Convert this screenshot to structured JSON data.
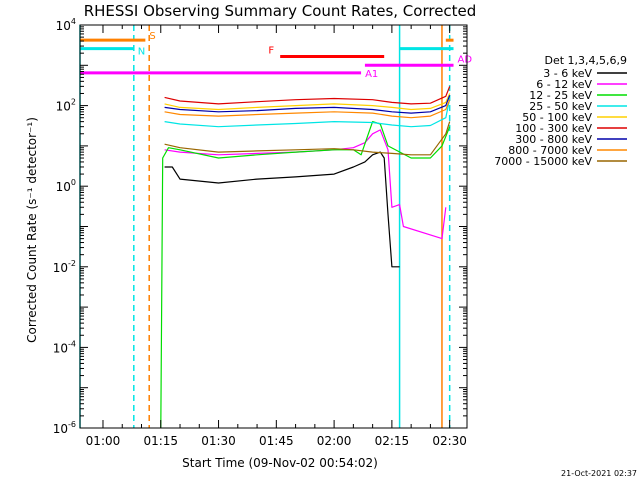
{
  "chart_data": {
    "type": "line",
    "title": "RHESSI Observing Summary Count Rates, Corrected",
    "xlabel": "Start Time (09-Nov-02 00:54:02)",
    "ylabel": "Corrected Count Rate (s⁻¹ detector⁻¹)",
    "y_scale": "log",
    "xlim": [
      "00:54:02",
      "02:34:30"
    ],
    "ylim": [
      1e-06,
      10000.0
    ],
    "x_ticks": [
      "01:00",
      "01:15",
      "01:30",
      "01:45",
      "02:00",
      "02:15",
      "02:30"
    ],
    "y_ticks": [
      {
        "base": "10",
        "exp": "-6",
        "value": 1e-06
      },
      {
        "base": "10",
        "exp": "-4",
        "value": 0.0001
      },
      {
        "base": "10",
        "exp": "-2",
        "value": 0.01
      },
      {
        "base": "10",
        "exp": "0",
        "value": 1
      },
      {
        "base": "10",
        "exp": "2",
        "value": 100
      },
      {
        "base": "10",
        "exp": "4",
        "value": 10000
      }
    ],
    "legend_title": "Det 1,3,4,5,6,9",
    "legend_position": "right",
    "series": [
      {
        "name": "3 - 6 keV",
        "color": "#000000",
        "points": [
          [
            "01:16",
            3
          ],
          [
            "01:18",
            3
          ],
          [
            "01:20",
            1.5
          ],
          [
            "01:30",
            1.2
          ],
          [
            "01:40",
            1.5
          ],
          [
            "01:50",
            1.7
          ],
          [
            "02:00",
            2
          ],
          [
            "02:05",
            3
          ],
          [
            "02:08",
            4
          ],
          [
            "02:10",
            6
          ],
          [
            "02:12",
            7
          ],
          [
            "02:13",
            5
          ],
          [
            "02:14",
            0.2
          ],
          [
            "02:15",
            0.01
          ],
          [
            "02:17",
            0.01
          ]
        ]
      },
      {
        "name": "6 - 12 keV",
        "color": "#ff00ff",
        "points": [
          [
            "01:16",
            8
          ],
          [
            "01:20",
            7
          ],
          [
            "01:30",
            6
          ],
          [
            "01:40",
            6.5
          ],
          [
            "01:50",
            7
          ],
          [
            "02:00",
            8
          ],
          [
            "02:05",
            9
          ],
          [
            "02:08",
            12
          ],
          [
            "02:10",
            20
          ],
          [
            "02:12",
            25
          ],
          [
            "02:14",
            8
          ],
          [
            "02:15",
            0.3
          ],
          [
            "02:17",
            0.35
          ],
          [
            "02:18",
            0.1
          ],
          [
            "02:28",
            0.05
          ],
          [
            "02:29",
            0.3
          ]
        ]
      },
      {
        "name": "12 - 25 keV",
        "color": "#00dd00",
        "points": [
          [
            "01:15",
            1e-06
          ],
          [
            "01:15:30",
            5
          ],
          [
            "01:17",
            9
          ],
          [
            "01:20",
            8
          ],
          [
            "01:30",
            5
          ],
          [
            "01:40",
            6
          ],
          [
            "01:50",
            7
          ],
          [
            "02:00",
            8
          ],
          [
            "02:05",
            8
          ],
          [
            "02:07",
            6
          ],
          [
            "02:10",
            40
          ],
          [
            "02:12",
            35
          ],
          [
            "02:14",
            10
          ],
          [
            "02:20",
            5
          ],
          [
            "02:25",
            5
          ],
          [
            "02:28",
            10
          ],
          [
            "02:30",
            30
          ]
        ]
      },
      {
        "name": "25 - 50 keV",
        "color": "#00e5e5",
        "points": [
          [
            "01:16",
            40
          ],
          [
            "01:20",
            35
          ],
          [
            "01:30",
            30
          ],
          [
            "01:40",
            33
          ],
          [
            "01:50",
            36
          ],
          [
            "02:00",
            40
          ],
          [
            "02:10",
            38
          ],
          [
            "02:15",
            33
          ],
          [
            "02:20",
            30
          ],
          [
            "02:25",
            32
          ],
          [
            "02:29",
            50
          ],
          [
            "02:30",
            150
          ]
        ]
      },
      {
        "name": "50 - 100 keV",
        "color": "#ffd000",
        "points": [
          [
            "01:16",
            110
          ],
          [
            "01:20",
            90
          ],
          [
            "01:30",
            80
          ],
          [
            "01:40",
            90
          ],
          [
            "01:50",
            100
          ],
          [
            "02:00",
            110
          ],
          [
            "02:10",
            100
          ],
          [
            "02:15",
            90
          ],
          [
            "02:20",
            80
          ],
          [
            "02:25",
            85
          ],
          [
            "02:29",
            120
          ],
          [
            "02:30",
            200
          ]
        ]
      },
      {
        "name": "100 - 300 keV",
        "color": "#dd0000",
        "points": [
          [
            "01:16",
            160
          ],
          [
            "01:20",
            130
          ],
          [
            "01:30",
            110
          ],
          [
            "01:40",
            125
          ],
          [
            "01:50",
            140
          ],
          [
            "02:00",
            150
          ],
          [
            "02:10",
            140
          ],
          [
            "02:15",
            120
          ],
          [
            "02:20",
            110
          ],
          [
            "02:25",
            115
          ],
          [
            "02:29",
            170
          ],
          [
            "02:30",
            300
          ]
        ]
      },
      {
        "name": "300 - 800 keV",
        "color": "#0000aa",
        "points": [
          [
            "01:16",
            90
          ],
          [
            "01:20",
            80
          ],
          [
            "01:30",
            70
          ],
          [
            "01:40",
            75
          ],
          [
            "01:50",
            85
          ],
          [
            "02:00",
            90
          ],
          [
            "02:10",
            80
          ],
          [
            "02:15",
            70
          ],
          [
            "02:20",
            65
          ],
          [
            "02:25",
            70
          ],
          [
            "02:29",
            100
          ],
          [
            "02:30",
            180
          ]
        ]
      },
      {
        "name": "800 - 7000 keV",
        "color": "#ff8800",
        "points": [
          [
            "01:16",
            70
          ],
          [
            "01:20",
            60
          ],
          [
            "01:30",
            55
          ],
          [
            "01:40",
            60
          ],
          [
            "01:50",
            65
          ],
          [
            "02:00",
            70
          ],
          [
            "02:10",
            65
          ],
          [
            "02:15",
            55
          ],
          [
            "02:20",
            50
          ],
          [
            "02:25",
            55
          ],
          [
            "02:29",
            80
          ],
          [
            "02:30",
            140
          ]
        ]
      },
      {
        "name": "7000 - 15000 keV",
        "color": "#996600",
        "points": [
          [
            "01:16",
            11
          ],
          [
            "01:20",
            9
          ],
          [
            "01:30",
            7
          ],
          [
            "01:40",
            7.5
          ],
          [
            "01:50",
            8
          ],
          [
            "02:00",
            8.5
          ],
          [
            "02:05",
            8
          ],
          [
            "02:10",
            7
          ],
          [
            "02:15",
            6.5
          ],
          [
            "02:20",
            6
          ],
          [
            "02:25",
            6
          ],
          [
            "02:29",
            20
          ],
          [
            "02:30",
            40
          ]
        ]
      }
    ],
    "state_bars": [
      {
        "label": "S",
        "color": "#ff8000",
        "start": "00:54:02",
        "end": "01:11",
        "value": 4200
      },
      {
        "label": "S",
        "color": "#ff8000",
        "start": "02:29",
        "end": "02:31",
        "value": 4200,
        "show_label": false
      },
      {
        "label": "N",
        "color": "#00e5e5",
        "start": "00:54:02",
        "end": "01:08",
        "value": 2600
      },
      {
        "label": "N",
        "color": "#00e5e5",
        "start": "02:17",
        "end": "02:31",
        "value": 2600,
        "show_label": false
      },
      {
        "label": "F",
        "color": "#ff0000",
        "start": "01:46",
        "end": "02:13",
        "value": 1650
      },
      {
        "label": "AD",
        "color": "#ff00ff",
        "start": "02:08",
        "end": "02:31",
        "value": 1000
      },
      {
        "label": "A1",
        "color": "#ff00ff",
        "start": "00:54:02",
        "end": "02:07",
        "value": 650
      }
    ],
    "vertical_markers": [
      {
        "time": "00:54:02",
        "color": "#00e5e5",
        "style": "solid"
      },
      {
        "time": "01:08",
        "color": "#00e5e5",
        "style": "dashed"
      },
      {
        "time": "01:12",
        "color": "#ff8000",
        "style": "dashed"
      },
      {
        "time": "02:17",
        "color": "#00e5e5",
        "style": "solid"
      },
      {
        "time": "02:28",
        "color": "#ff8000",
        "style": "solid"
      },
      {
        "time": "02:30",
        "color": "#00e5e5",
        "style": "dashed"
      }
    ],
    "timestamp": "21-Oct-2021 02:37"
  }
}
